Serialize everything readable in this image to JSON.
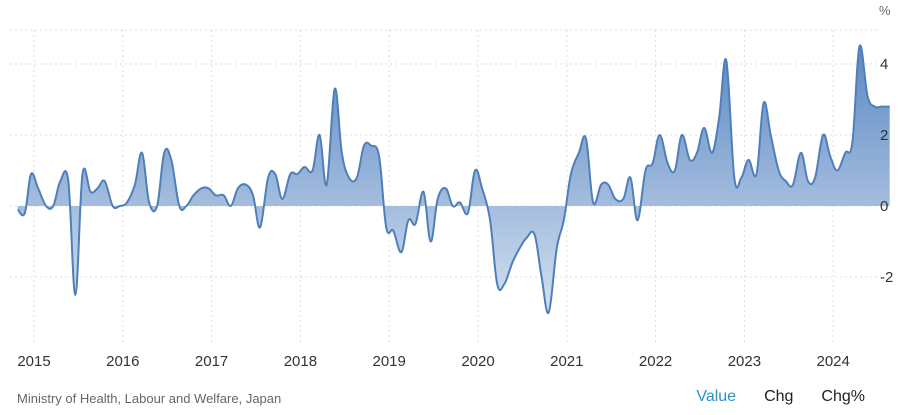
{
  "footer": {
    "source": "Ministry of Health, Labour and Welfare, Japan",
    "tabs": [
      {
        "label": "Value",
        "active": true
      },
      {
        "label": "Chg",
        "active": false
      },
      {
        "label": "Chg%",
        "active": false
      }
    ]
  },
  "colors": {
    "line": "#4f7fba",
    "fill_top": "#5b88c3",
    "fill_bottom": "#d5e1f0",
    "grid": "#dddddd",
    "active_tab": "#2f8fd0"
  },
  "chart_data": {
    "type": "area",
    "title": "",
    "xlabel": "",
    "ylabel": "",
    "y_unit": "%",
    "x_range": [
      2014.85,
      2024.7
    ],
    "ylim": [
      -3.5,
      5.0
    ],
    "y_ticks": [
      4,
      2,
      0,
      -2
    ],
    "x_tick_labels": [
      "2015",
      "2016",
      "2017",
      "2018",
      "2019",
      "2020",
      "2021",
      "2022",
      "2023",
      "2024"
    ],
    "grid": true,
    "series": [
      {
        "x": [
          2014.85,
          2014.93,
          2015.0,
          2015.08,
          2015.17,
          2015.25,
          2015.33,
          2015.42,
          2015.5,
          2015.58,
          2015.67,
          2015.75,
          2015.83,
          2015.92,
          2016.0,
          2016.08,
          2016.17,
          2016.25,
          2016.33,
          2016.42,
          2016.5,
          2016.58,
          2016.67,
          2016.75,
          2016.83,
          2016.92,
          2017.0,
          2017.08,
          2017.17,
          2017.25,
          2017.33,
          2017.42,
          2017.5,
          2017.58,
          2017.67,
          2017.75,
          2017.83,
          2017.92,
          2018.0,
          2018.08,
          2018.17,
          2018.25,
          2018.33,
          2018.42,
          2018.5,
          2018.58,
          2018.67,
          2018.75,
          2018.83,
          2018.92,
          2019.0,
          2019.08,
          2019.17,
          2019.25,
          2019.33,
          2019.42,
          2019.5,
          2019.58,
          2019.67,
          2019.75,
          2019.83,
          2019.92,
          2020.0,
          2020.08,
          2020.17,
          2020.25,
          2020.33,
          2020.42,
          2020.5,
          2020.58,
          2020.67,
          2020.75,
          2020.83,
          2020.92,
          2021.0,
          2021.08,
          2021.17,
          2021.25,
          2021.33,
          2021.42,
          2021.5,
          2021.58,
          2021.67,
          2021.75,
          2021.83,
          2021.92,
          2022.0,
          2022.08,
          2022.17,
          2022.25,
          2022.33,
          2022.42,
          2022.5,
          2022.58,
          2022.67,
          2022.75,
          2022.83,
          2022.92,
          2023.0,
          2023.08,
          2023.17,
          2023.25,
          2023.33,
          2023.42,
          2023.5,
          2023.58,
          2023.67,
          2023.75,
          2023.83,
          2023.92,
          2024.0,
          2024.08,
          2024.17,
          2024.25,
          2024.33,
          2024.42,
          2024.5,
          2024.58,
          2024.67
        ],
        "y": [
          -0.1,
          -0.2,
          0.9,
          0.5,
          0.0,
          0.0,
          0.7,
          0.7,
          -2.5,
          0.9,
          0.4,
          0.5,
          0.7,
          0.0,
          0.0,
          0.1,
          0.6,
          1.5,
          0.1,
          0.0,
          1.5,
          1.3,
          0.0,
          0.0,
          0.3,
          0.5,
          0.5,
          0.3,
          0.3,
          0.0,
          0.5,
          0.6,
          0.3,
          -0.6,
          0.8,
          0.9,
          0.2,
          0.9,
          0.9,
          1.1,
          1.0,
          2.0,
          0.6,
          3.3,
          1.5,
          0.8,
          0.8,
          1.7,
          1.7,
          1.4,
          -0.6,
          -0.7,
          -1.3,
          -0.4,
          -0.5,
          0.4,
          -1.0,
          0.2,
          0.5,
          0.0,
          0.1,
          -0.2,
          1.0,
          0.5,
          -0.4,
          -2.2,
          -2.2,
          -1.6,
          -1.2,
          -0.9,
          -0.8,
          -2.0,
          -3.0,
          -1.2,
          -0.4,
          0.9,
          1.5,
          1.9,
          0.1,
          0.6,
          0.6,
          0.2,
          0.2,
          0.8,
          -0.4,
          1.0,
          1.2,
          2.0,
          1.2,
          1.0,
          2.0,
          1.3,
          1.5,
          2.2,
          1.5,
          2.5,
          4.1,
          0.8,
          0.8,
          1.3,
          0.9,
          2.9,
          2.0,
          1.0,
          0.7,
          0.6,
          1.5,
          0.7,
          0.8,
          2.0,
          1.4,
          1.0,
          1.5,
          1.8,
          4.5,
          3.1,
          2.8,
          2.8,
          2.8
        ]
      }
    ]
  }
}
